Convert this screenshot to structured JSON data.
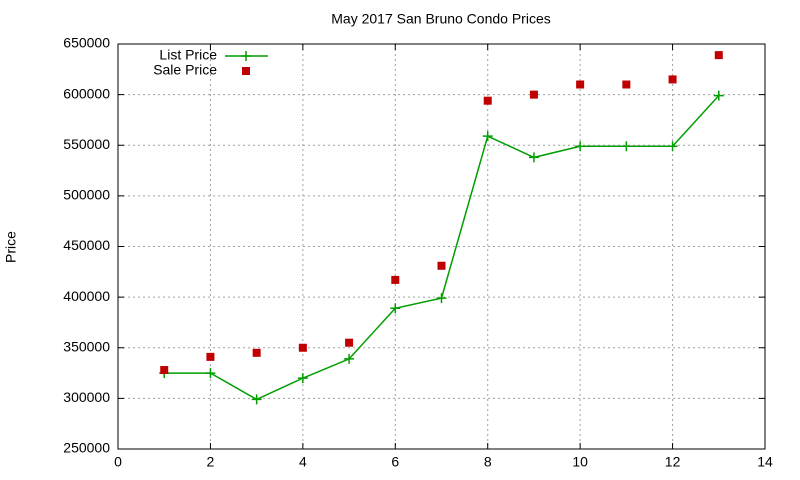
{
  "chart_data": {
    "type": "line",
    "title": "May 2017 San Bruno Condo Prices",
    "y_label": "Price",
    "x": [
      1,
      2,
      3,
      4,
      5,
      6,
      7,
      8,
      9,
      10,
      11,
      12,
      13
    ],
    "series": [
      {
        "name": "List Price",
        "color": "#009e00",
        "style": "linespoints",
        "marker": "plus",
        "values": [
          325000,
          325000,
          299000,
          320000,
          339000,
          389000,
          399000,
          559000,
          538000,
          549000,
          549000,
          549000,
          599000
        ]
      },
      {
        "name": "Sale Price",
        "color": "#c00000",
        "style": "points",
        "marker": "square",
        "values": [
          328000,
          341000,
          345000,
          350000,
          355000,
          417000,
          431000,
          594000,
          600000,
          610000,
          610000,
          615000,
          639000
        ]
      }
    ],
    "xlim": [
      0,
      14
    ],
    "xticks": [
      0,
      2,
      4,
      6,
      8,
      10,
      12,
      14
    ],
    "ylim": [
      250000,
      650000
    ],
    "yticks": [
      250000,
      300000,
      350000,
      400000,
      450000,
      500000,
      550000,
      600000,
      650000
    ],
    "grid": true,
    "legend": "upper left"
  }
}
